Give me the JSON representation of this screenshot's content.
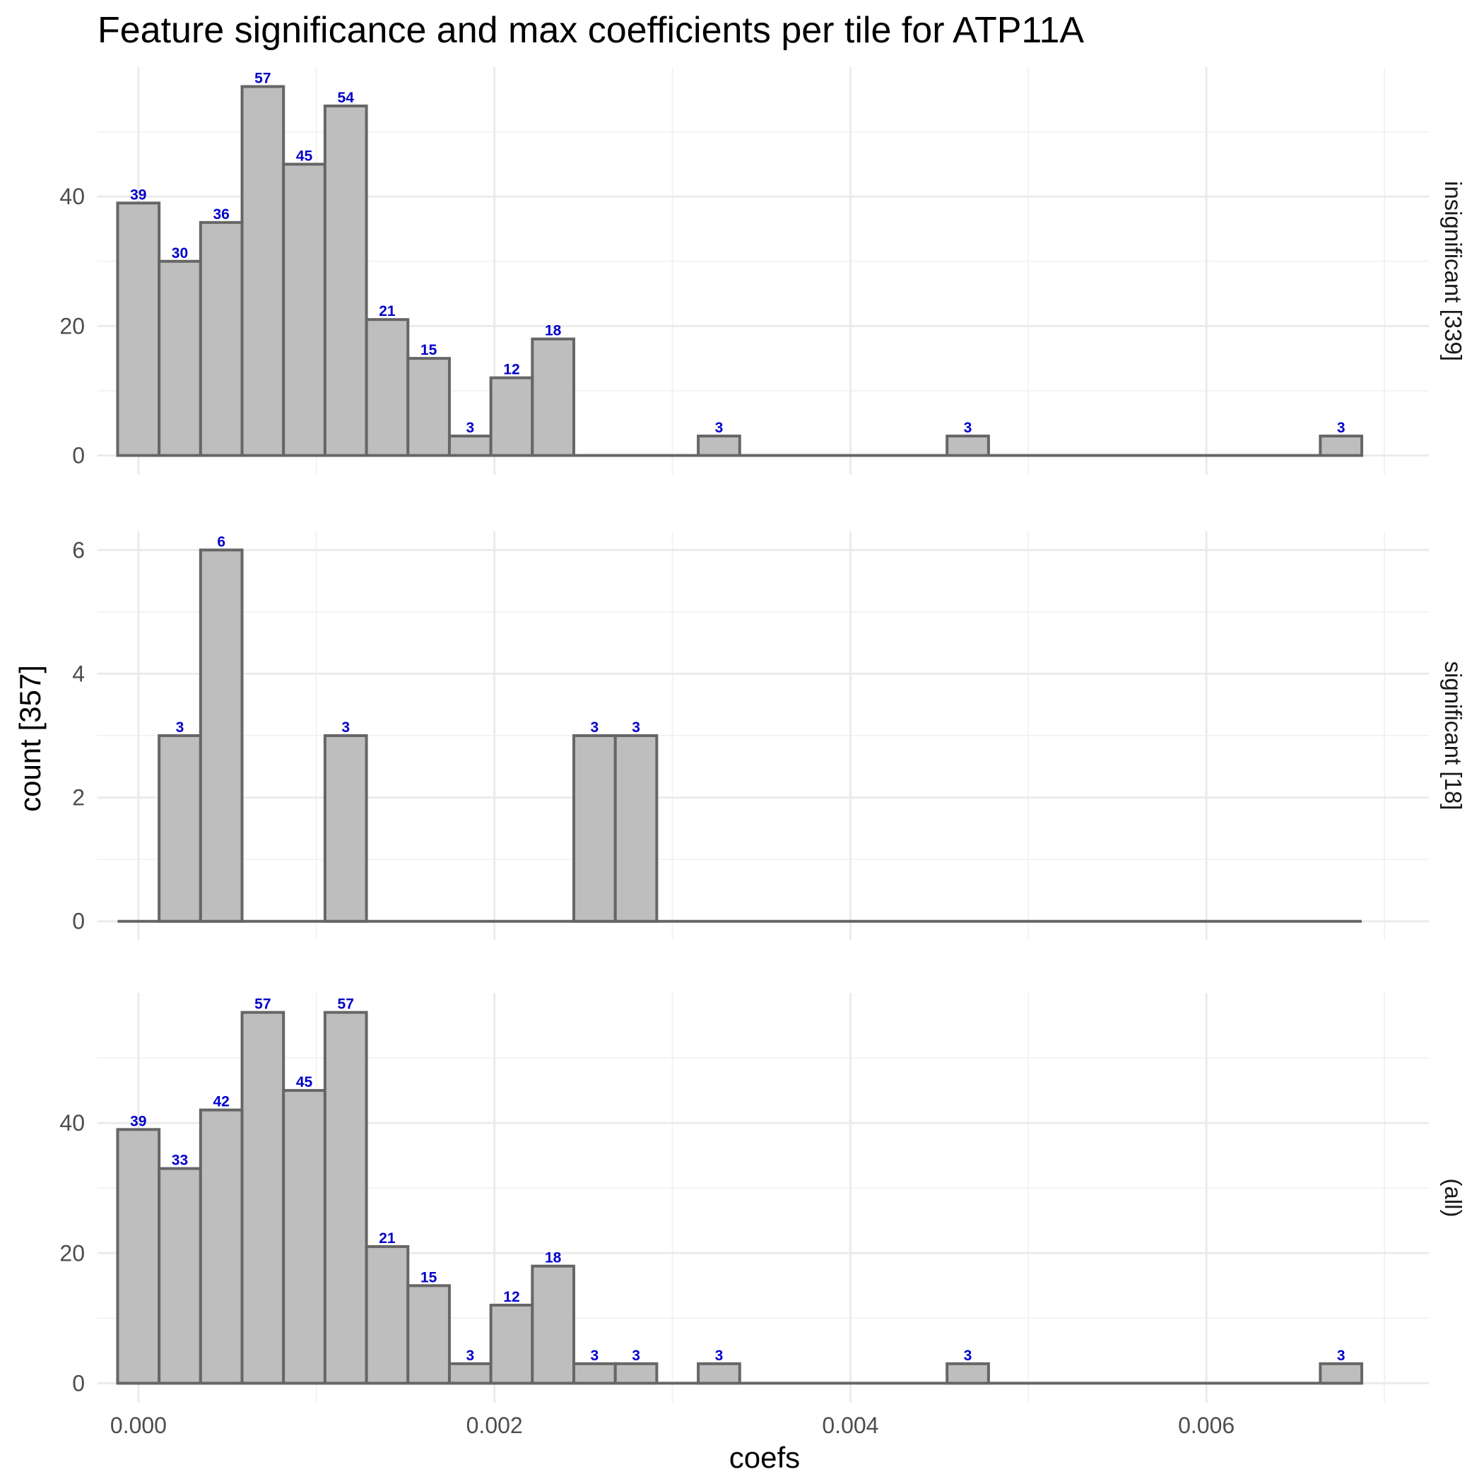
{
  "chart_data": {
    "type": "bar",
    "title": "Feature significance and max coefficients per tile for ATP11A",
    "xlabel": "coefs",
    "ylabel": "count [357]",
    "xlim": [
      -0.00023,
      0.00725
    ],
    "x_ticks": [
      0.0,
      0.002,
      0.004,
      0.006
    ],
    "x_tick_labels": [
      "0.000",
      "0.002",
      "0.004",
      "0.006"
    ],
    "bin_width": 0.000233,
    "bin_start": -0.000117,
    "n_bins": 30,
    "grid": true,
    "panels": [
      {
        "strip_label": "insignificant [339]",
        "ylim": [
          -3,
          60
        ],
        "y_ticks": [
          0,
          20,
          40
        ],
        "y_minor": [
          10,
          30,
          50
        ],
        "bins": [
          {
            "bin": 0,
            "value": 39
          },
          {
            "bin": 1,
            "value": 30
          },
          {
            "bin": 2,
            "value": 36
          },
          {
            "bin": 3,
            "value": 57
          },
          {
            "bin": 4,
            "value": 45
          },
          {
            "bin": 5,
            "value": 54
          },
          {
            "bin": 6,
            "value": 21
          },
          {
            "bin": 7,
            "value": 15
          },
          {
            "bin": 8,
            "value": 3
          },
          {
            "bin": 9,
            "value": 12
          },
          {
            "bin": 10,
            "value": 18
          },
          {
            "bin": 14,
            "value": 3
          },
          {
            "bin": 20,
            "value": 3
          },
          {
            "bin": 29,
            "value": 3
          }
        ]
      },
      {
        "strip_label": "significant [18]",
        "ylim": [
          -0.3,
          6.3
        ],
        "y_ticks": [
          0,
          2,
          4,
          6
        ],
        "y_minor": [
          1,
          3,
          5
        ],
        "bins": [
          {
            "bin": 1,
            "value": 3
          },
          {
            "bin": 2,
            "value": 6
          },
          {
            "bin": 5,
            "value": 3
          },
          {
            "bin": 11,
            "value": 3
          },
          {
            "bin": 12,
            "value": 3
          }
        ]
      },
      {
        "strip_label": "(all)",
        "ylim": [
          -3,
          60
        ],
        "y_ticks": [
          0,
          20,
          40
        ],
        "y_minor": [
          10,
          30,
          50
        ],
        "bins": [
          {
            "bin": 0,
            "value": 39
          },
          {
            "bin": 1,
            "value": 33
          },
          {
            "bin": 2,
            "value": 42
          },
          {
            "bin": 3,
            "value": 57
          },
          {
            "bin": 4,
            "value": 45
          },
          {
            "bin": 5,
            "value": 57
          },
          {
            "bin": 6,
            "value": 21
          },
          {
            "bin": 7,
            "value": 15
          },
          {
            "bin": 8,
            "value": 3
          },
          {
            "bin": 9,
            "value": 12
          },
          {
            "bin": 10,
            "value": 18
          },
          {
            "bin": 11,
            "value": 3
          },
          {
            "bin": 12,
            "value": 3
          },
          {
            "bin": 14,
            "value": 3
          },
          {
            "bin": 20,
            "value": 3
          },
          {
            "bin": 29,
            "value": 3
          }
        ]
      }
    ]
  }
}
